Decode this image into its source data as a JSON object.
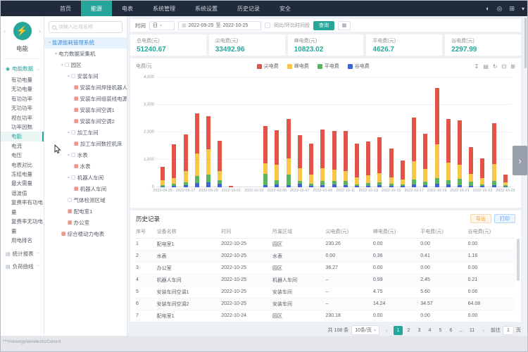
{
  "app": {
    "status_url": "***/#/energy/ele/electricCurrent"
  },
  "navbar": {
    "items": [
      "首页",
      "能源",
      "电表",
      "系统管理",
      "系统设置",
      "历史记录",
      "安全"
    ],
    "active": "能源",
    "right_icons": [
      {
        "name": "theme-icon",
        "glyph": "◐"
      },
      {
        "name": "message-icon",
        "glyph": "◎"
      },
      {
        "name": "fullscreen-icon",
        "glyph": "⊞"
      }
    ],
    "user_caret": "▾"
  },
  "sidebar": {
    "prev_arrow": "‹",
    "next_arrow": "›",
    "logo_glyph": "⚡",
    "module_label": "电能",
    "group_label": "电能数据",
    "group_caret": "︿",
    "items": [
      "有功电量",
      "无功电量",
      "有功功率",
      "无功功率",
      "视在功率",
      "功率因数",
      "电能",
      "电流",
      "电压",
      "电表对比",
      "冻结电量",
      "最大需量",
      "谐波值",
      "复费率有功电量",
      "复费率无功电量",
      "用电排名"
    ],
    "active_item": "电能",
    "bottom_groups": [
      "统计报表",
      "负荷曲线"
    ],
    "bottom_caret": "﹀"
  },
  "tree": {
    "search_placeholder": "请输入区域名称",
    "nodes": [
      {
        "label": "能源能耗管理系统",
        "depth": 0,
        "icon": "none",
        "caret": true,
        "selected": true
      },
      {
        "label": "电力数据采集机",
        "depth": 1,
        "icon": "none",
        "caret": true,
        "selected": false
      },
      {
        "label": "园区",
        "depth": 2,
        "icon": "area",
        "caret": true,
        "selected": false
      },
      {
        "label": "安装车间",
        "depth": 3,
        "icon": "area",
        "caret": true,
        "selected": false
      },
      {
        "label": "安装车间焊接机器人电源",
        "depth": 4,
        "icon": "meter",
        "caret": false,
        "selected": false
      },
      {
        "label": "安装车间组装线电源",
        "depth": 4,
        "icon": "meter",
        "caret": false,
        "selected": false
      },
      {
        "label": "安装车间空调1",
        "depth": 4,
        "icon": "meter",
        "caret": false,
        "selected": false
      },
      {
        "label": "安装车间空调2",
        "depth": 4,
        "icon": "meter",
        "caret": false,
        "selected": false
      },
      {
        "label": "加工车间",
        "depth": 3,
        "icon": "area",
        "caret": true,
        "selected": false
      },
      {
        "label": "加工车间数控机床",
        "depth": 4,
        "icon": "meter",
        "caret": false,
        "selected": false
      },
      {
        "label": "水表",
        "depth": 3,
        "icon": "area",
        "caret": true,
        "selected": false
      },
      {
        "label": "水表",
        "depth": 4,
        "icon": "meter",
        "caret": false,
        "selected": false
      },
      {
        "label": "机器人车间",
        "depth": 3,
        "icon": "area",
        "caret": true,
        "selected": false
      },
      {
        "label": "机器人车间",
        "depth": 4,
        "icon": "meter",
        "caret": false,
        "selected": false
      },
      {
        "label": "气体检测区域",
        "depth": 3,
        "icon": "area",
        "caret": false,
        "selected": false
      },
      {
        "label": "配电室1",
        "depth": 3,
        "icon": "meter",
        "caret": false,
        "selected": false
      },
      {
        "label": "办公室",
        "depth": 3,
        "icon": "meter",
        "caret": false,
        "selected": false
      },
      {
        "label": "综合楼动力电表",
        "depth": 2,
        "icon": "meter",
        "caret": false,
        "selected": false
      }
    ]
  },
  "filter": {
    "time_label": "时间",
    "period_value": "日",
    "date_start": "2022-09-25",
    "date_separator": "至",
    "date_end": "2022-10-25",
    "compare_label": "同比/环比时间段",
    "query_button": "查询",
    "toggle_glyph": "▦"
  },
  "stats": {
    "cards": [
      {
        "label": "总电费(元)",
        "value": "51240.67"
      },
      {
        "label": "尖电费(元)",
        "value": "33492.96"
      },
      {
        "label": "峰电费(元)",
        "value": "10823.02"
      },
      {
        "label": "平电费(元)",
        "value": "4626.7"
      },
      {
        "label": "谷电费(元)",
        "value": "2297.99"
      }
    ]
  },
  "chart": {
    "unit_label": "电费/元",
    "toolbar_icons": [
      {
        "name": "download-icon",
        "glyph": "↧"
      },
      {
        "name": "data-view-icon",
        "glyph": "▤"
      },
      {
        "name": "refresh-icon",
        "glyph": "↻"
      },
      {
        "name": "restore-icon",
        "glyph": "⊡"
      },
      {
        "name": "fullscreen-icon",
        "glyph": "⊞"
      }
    ]
  },
  "chart_data": {
    "type": "bar",
    "stacked": true,
    "title": "",
    "xlabel": "",
    "ylabel": "电费/元",
    "ylim": [
      0,
      4000
    ],
    "ytick_step": 1000,
    "grid": true,
    "legend_position": "top",
    "x": [
      "2022-09-25",
      "2022-09-26",
      "2022-09-27",
      "2022-09-28",
      "2022-09-29",
      "2022-09-30",
      "2022-10-01",
      "2022-10-02",
      "2022-10-03",
      "2022-10-04",
      "2022-10-05",
      "2022-10-06",
      "2022-10-07",
      "2022-10-08",
      "2022-10-09",
      "2022-10-10",
      "2022-10-11",
      "2022-10-12",
      "2022-10-13",
      "2022-10-14",
      "2022-10-15",
      "2022-10-16",
      "2022-10-17",
      "2022-10-18",
      "2022-10-19",
      "2022-10-20",
      "2022-10-21",
      "2022-10-22",
      "2022-10-23",
      "2022-10-24",
      "2022-10-25"
    ],
    "series": [
      {
        "name": "尖电费",
        "color": "#e25447",
        "values": [
          500,
          1240,
          1340,
          1480,
          1200,
          1110,
          50,
          0,
          0,
          1370,
          1250,
          1450,
          1200,
          1150,
          1400,
          1400,
          1440,
          1240,
          1250,
          1300,
          1030,
          690,
          1590,
          1280,
          2050,
          1600,
          1620,
          960,
          720,
          1490,
          270
        ]
      },
      {
        "name": "峰电费",
        "color": "#f7c64b",
        "values": [
          170,
          200,
          420,
          820,
          920,
          330,
          0,
          0,
          0,
          360,
          580,
          590,
          480,
          310,
          480,
          430,
          370,
          250,
          280,
          350,
          240,
          190,
          660,
          480,
          1230,
          640,
          520,
          290,
          230,
          620,
          120
        ]
      },
      {
        "name": "平电费",
        "color": "#58b65c",
        "values": [
          50,
          80,
          100,
          240,
          280,
          140,
          0,
          0,
          0,
          420,
          150,
          370,
          90,
          80,
          130,
          120,
          150,
          60,
          90,
          100,
          80,
          60,
          180,
          120,
          200,
          160,
          210,
          150,
          70,
          130,
          40
        ]
      },
      {
        "name": "谷电费",
        "color": "#3d64d2",
        "values": [
          30,
          50,
          70,
          160,
          180,
          120,
          0,
          0,
          0,
          80,
          100,
          90,
          130,
          60,
          90,
          100,
          80,
          50,
          60,
          70,
          50,
          40,
          110,
          80,
          140,
          100,
          90,
          60,
          40,
          90,
          30
        ]
      }
    ]
  },
  "history": {
    "title": "历史记录",
    "export_button": "导出",
    "print_button": "打印",
    "columns": [
      "序号",
      "设备名称",
      "时间",
      "所属区域",
      "尖电费(元)",
      "峰电费(元)",
      "平电费(元)",
      "谷电费(元)"
    ],
    "rows": [
      [
        "1",
        "配电室1",
        "2022-10-25",
        "园区",
        "230.26",
        "0.00",
        "0.00",
        "0.00"
      ],
      [
        "2",
        "水表",
        "2022-10-25",
        "水表",
        "0.00",
        "0.36",
        "0.41",
        "1.16"
      ],
      [
        "3",
        "办公室",
        "2022-10-25",
        "园区",
        "36.27",
        "0.00",
        "0.00",
        "0.00"
      ],
      [
        "4",
        "机器人车间",
        "2022-10-25",
        "机器人车间",
        "–",
        "0.99",
        "2.45",
        "0.21"
      ],
      [
        "5",
        "安装车间空调1",
        "2022-10-25",
        "安装车间",
        "–",
        "4.75",
        "5.60",
        "0.06"
      ],
      [
        "6",
        "安装车间空调2",
        "2022-10-25",
        "安装车间",
        "–",
        "14.24",
        "34.57",
        "64.08"
      ],
      [
        "7",
        "配电室1",
        "2022-10-24",
        "园区",
        "230.18",
        "0.00",
        "0.00",
        "0.00"
      ]
    ]
  },
  "pagination": {
    "total": "共 108 条",
    "page_size": "10条/页",
    "prev": "‹",
    "next": "›",
    "pages": [
      "1",
      "2",
      "3",
      "4",
      "5",
      "6",
      "...",
      "11"
    ],
    "current": "1",
    "goto_label": "前往",
    "goto_value": "1",
    "unit_label": "页"
  }
}
